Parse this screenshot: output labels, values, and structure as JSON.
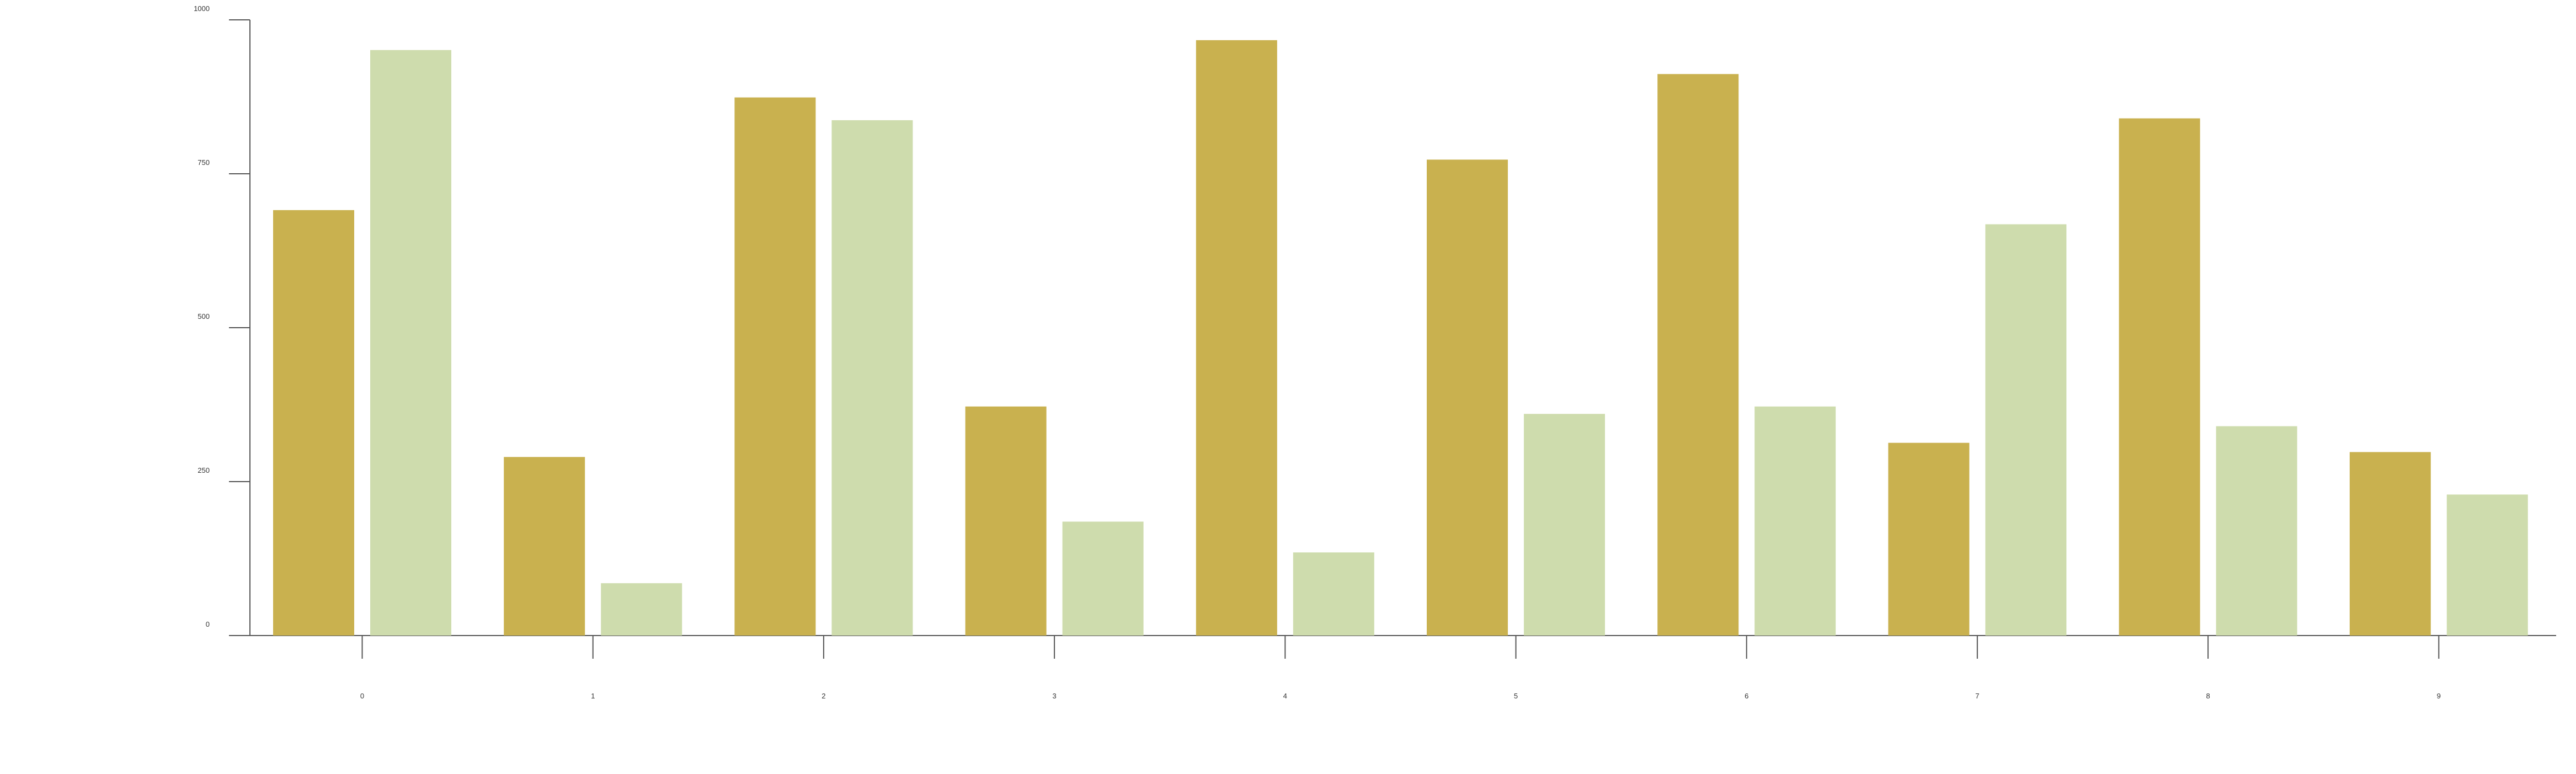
{
  "chart_data": {
    "type": "bar",
    "categories": [
      "0",
      "1",
      "2",
      "3",
      "4",
      "5",
      "6",
      "7",
      "8",
      "9"
    ],
    "series": [
      {
        "values": [
          691,
          290,
          874,
          372,
          967,
          773,
          912,
          313,
          840,
          298
        ],
        "color": "#c9b14f"
      },
      {
        "values": [
          951,
          85,
          837,
          185,
          135,
          360,
          372,
          668,
          340,
          229
        ],
        "color": "#cedcad"
      }
    ],
    "y_ticks": [
      "0",
      "250",
      "500",
      "750",
      "1000"
    ],
    "ylim": [
      0,
      1000
    ],
    "title": "",
    "xlabel": "",
    "ylabel": "",
    "grid": false,
    "legend": "none",
    "colors": {
      "axis": "#555555",
      "background": "#ffffff"
    }
  }
}
